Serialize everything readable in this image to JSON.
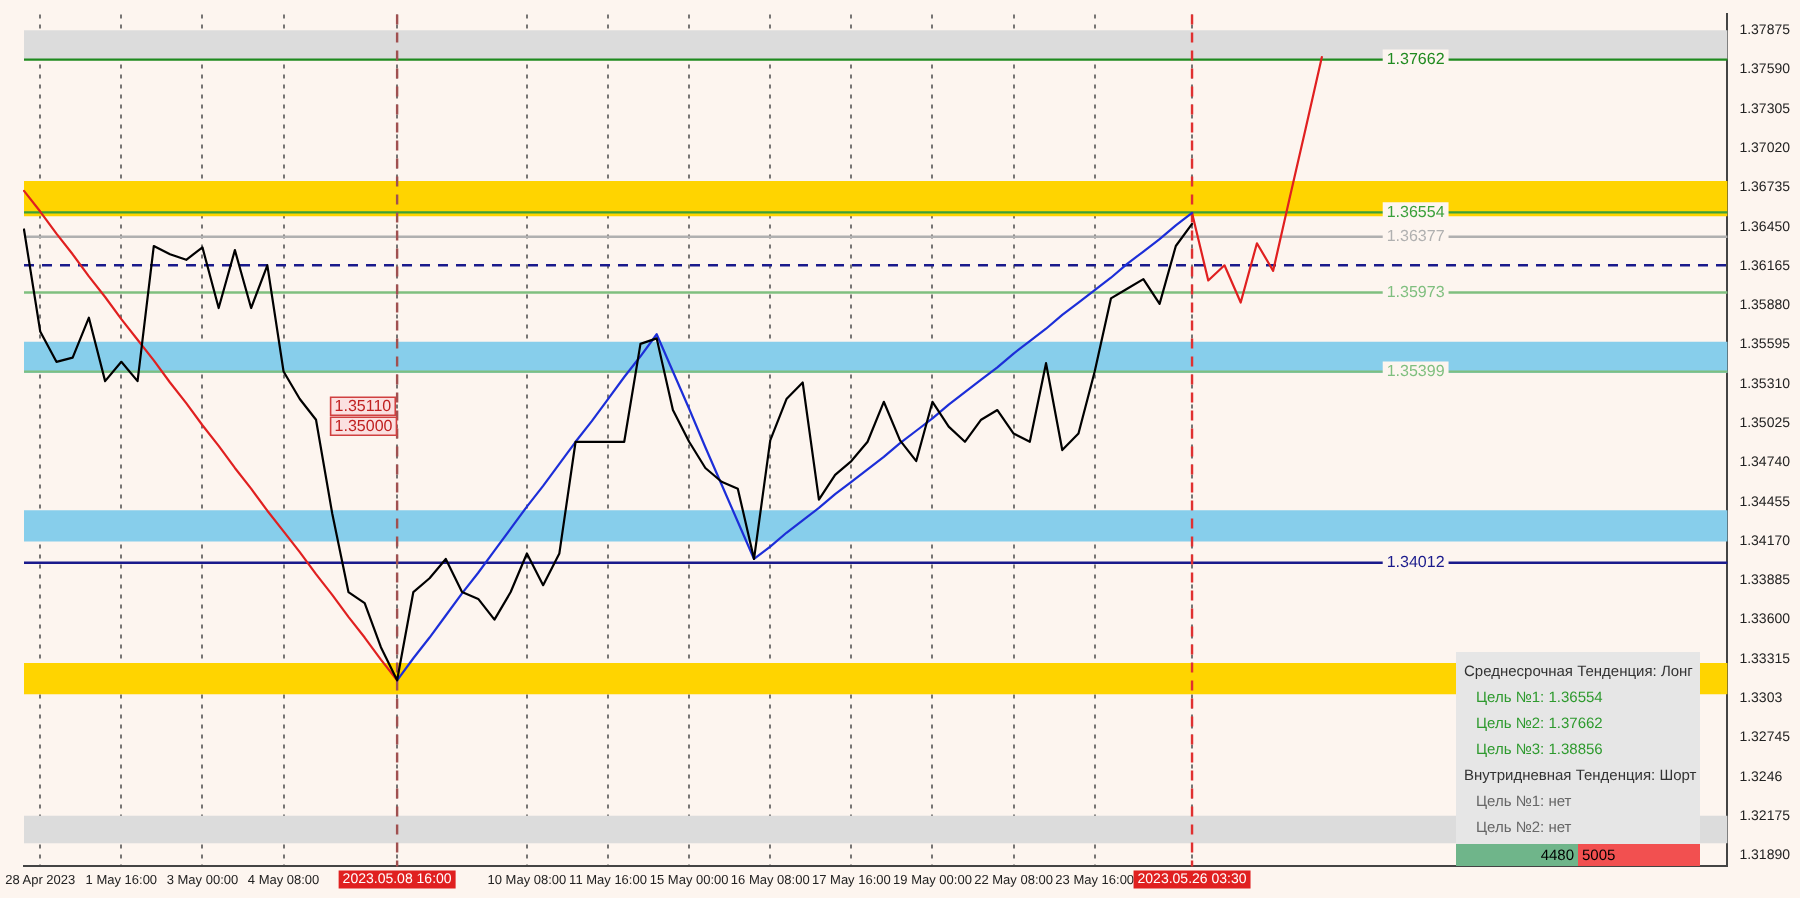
{
  "chart_data": {
    "type": "line",
    "ylim": [
      1.3181,
      1.3799
    ],
    "categories": [
      null,
      "28 Apr 2023",
      null,
      null,
      null,
      null,
      "1 May 16:00",
      null,
      null,
      null,
      null,
      "3 May 00:00",
      null,
      null,
      null,
      null,
      "4 May 08:00",
      null,
      null,
      null,
      null,
      null,
      null,
      "2023.05.08 16:00",
      null,
      null,
      null,
      null,
      null,
      null,
      null,
      "10 May 08:00",
      null,
      null,
      null,
      null,
      "11 May 16:00",
      null,
      null,
      null,
      null,
      "15 May 00:00",
      null,
      null,
      null,
      null,
      "16 May 08:00",
      null,
      null,
      null,
      null,
      "17 May 16:00",
      null,
      null,
      null,
      null,
      "19 May 00:00",
      null,
      null,
      null,
      null,
      "22 May 08:00",
      null,
      null,
      null,
      null,
      "23 May 16:00",
      null,
      null,
      null,
      null,
      null,
      "2023.05.26 03:30",
      null,
      null,
      null,
      null,
      null,
      null,
      null,
      null,
      null,
      null,
      null,
      null,
      null,
      null,
      null,
      null,
      null,
      null,
      null,
      null,
      null,
      null,
      null,
      null,
      null,
      null,
      null,
      null,
      null,
      null,
      null,
      null,
      null
    ],
    "yticks": [
      {
        "value": 1.3189,
        "label": "1.31890"
      },
      1.32175,
      1.3246,
      1.32745,
      1.3303,
      1.33315,
      {
        "value": 1.336,
        "label": "1.33600"
      },
      1.33885,
      {
        "value": 1.3417,
        "label": "1.34170"
      },
      1.34455,
      {
        "value": 1.3474,
        "label": "1.34740"
      },
      1.35025,
      {
        "value": 1.3531,
        "label": "1.35310"
      },
      1.35595,
      {
        "value": 1.3588,
        "label": "1.35880"
      },
      1.36165,
      {
        "value": 1.3645,
        "label": "1.36450"
      },
      1.36735,
      {
        "value": 1.3702,
        "label": "1.37020"
      },
      1.37305,
      {
        "value": 1.3759,
        "label": "1.37590"
      },
      1.37875
    ],
    "grid": "x",
    "legend": false,
    "marker": "none",
    "series": [
      {
        "color": "#000000",
        "values": [
          1.3643,
          1.3569,
          1.3547,
          1.355,
          1.3579,
          1.3533,
          1.3547,
          1.3533,
          1.3631,
          1.3625,
          1.3621,
          1.363,
          1.3586,
          1.3628,
          1.3586,
          1.3617,
          1.354,
          1.352,
          1.3505,
          1.3437,
          1.338,
          1.3372,
          1.334,
          1.3316,
          1.338,
          1.339,
          1.3404,
          1.338,
          1.3375,
          1.336,
          1.338,
          1.3408,
          1.3385,
          1.3408,
          1.3489,
          1.3489,
          1.3489,
          1.3489,
          1.356,
          1.3564,
          1.3512,
          1.3489,
          1.347,
          1.346,
          1.3455,
          1.3404,
          1.349,
          1.352,
          1.3532,
          1.3447,
          1.3465,
          1.3475,
          1.3489,
          1.3518,
          1.349,
          1.3475,
          1.3518,
          1.35,
          1.3489,
          1.3505,
          1.3512,
          1.3495,
          1.3489,
          1.3546,
          1.3483,
          1.3495,
          1.354,
          1.3593,
          1.36,
          1.3607,
          1.3589,
          1.3631,
          1.3647,
          null,
          null,
          null,
          null,
          null,
          null,
          null,
          null,
          null,
          null,
          null,
          null,
          null,
          null,
          null,
          null,
          null,
          null,
          null,
          null,
          null,
          null,
          null,
          null,
          null,
          null,
          null,
          null,
          null,
          null,
          null,
          null,
          null
        ]
      },
      {
        "color": "#1c2ed8",
        "values": [
          null,
          null,
          null,
          null,
          null,
          null,
          null,
          null,
          null,
          null,
          null,
          null,
          null,
          null,
          null,
          null,
          null,
          null,
          null,
          null,
          null,
          null,
          null,
          1.3316,
          1.3332,
          1.3347,
          1.3363,
          1.3379,
          1.3394,
          1.341,
          1.3426,
          1.3442,
          1.3457,
          1.3473,
          1.3489,
          1.3504,
          1.352,
          1.3536,
          1.3551,
          1.3567,
          1.354,
          1.3513,
          1.3485,
          1.3458,
          1.3431,
          1.3404,
          1.3413,
          1.3423,
          1.3432,
          1.3441,
          1.3451,
          1.346,
          1.3469,
          1.3478,
          1.3488,
          1.3497,
          1.3506,
          1.3516,
          1.3525,
          1.3534,
          1.3543,
          1.3553,
          1.3562,
          1.3571,
          1.3581,
          1.359,
          1.3599,
          1.3608,
          1.3618,
          1.3627,
          1.3636,
          1.3646,
          1.3655,
          null,
          null,
          null,
          null,
          null,
          null,
          null,
          null,
          null,
          null,
          null,
          null,
          null,
          null,
          null,
          null,
          null,
          null,
          null,
          null,
          null,
          null,
          null,
          null,
          null,
          null,
          null,
          null,
          null,
          null,
          null,
          null,
          null
        ]
      },
      {
        "color": "#e02020",
        "values": [
          1.3671,
          1.3656,
          1.364,
          1.3625,
          1.3609,
          1.3594,
          1.3578,
          1.3563,
          1.3548,
          1.3532,
          1.3517,
          1.3501,
          1.3486,
          1.347,
          1.3455,
          1.3439,
          1.3424,
          1.3409,
          1.3393,
          1.3378,
          1.3362,
          1.3347,
          1.3331,
          1.3316,
          null,
          null,
          null,
          null,
          null,
          null,
          null,
          null,
          null,
          null,
          null,
          null,
          null,
          null,
          null,
          null,
          null,
          null,
          null,
          null,
          null,
          null,
          null,
          null,
          null,
          null,
          null,
          null,
          null,
          null,
          null,
          null,
          null,
          null,
          null,
          null,
          null,
          null,
          null,
          null,
          null,
          null,
          null,
          null,
          null,
          null,
          null,
          null,
          null,
          null,
          null,
          null,
          null,
          null,
          null,
          null,
          null,
          null,
          null,
          null,
          null,
          null,
          null,
          null,
          null,
          null,
          null,
          null,
          null,
          null,
          null,
          null,
          null,
          null,
          null,
          null,
          null,
          null,
          null,
          null,
          null,
          null
        ]
      },
      {
        "color": "#e02020",
        "values": [
          null,
          null,
          null,
          null,
          null,
          null,
          null,
          null,
          null,
          null,
          null,
          null,
          null,
          null,
          null,
          null,
          null,
          null,
          null,
          null,
          null,
          null,
          null,
          null,
          null,
          null,
          null,
          null,
          null,
          null,
          null,
          null,
          null,
          null,
          null,
          null,
          null,
          null,
          null,
          null,
          null,
          null,
          null,
          null,
          null,
          null,
          null,
          null,
          null,
          null,
          null,
          null,
          null,
          null,
          null,
          null,
          null,
          null,
          null,
          null,
          null,
          null,
          null,
          null,
          null,
          null,
          null,
          null,
          null,
          null,
          null,
          null,
          1.3655,
          1.3606,
          1.3617,
          1.359,
          1.3633,
          1.3613,
          1.3665,
          1.3716,
          1.3768,
          null,
          null,
          null,
          null,
          null,
          null,
          null,
          null,
          null,
          null,
          null,
          null,
          null,
          null,
          null,
          null,
          null,
          null,
          null,
          null,
          null,
          null,
          null,
          null,
          null
        ]
      }
    ],
    "bands": [
      {
        "axis": "y",
        "from": 1.37662,
        "to": 1.37875,
        "color": "#dcdcdc"
      },
      {
        "axis": "y",
        "from": 1.36525,
        "to": 1.36781,
        "color": "#ffd400"
      },
      {
        "axis": "y",
        "from": 1.35388,
        "to": 1.35616,
        "color": "#87ceeb"
      },
      {
        "axis": "y",
        "from": 1.34166,
        "to": 1.34394,
        "color": "#87ceeb"
      },
      {
        "axis": "y",
        "from": 1.33058,
        "to": 1.33285,
        "color": "#ffd400"
      },
      {
        "axis": "y",
        "from": 1.31978,
        "to": 1.32177,
        "color": "#dcdcdc"
      }
    ],
    "ref_lines": [
      {
        "axis": "y",
        "value": 1.37662,
        "label": "1.37662",
        "color": "#1f8a1f"
      },
      {
        "axis": "y",
        "value": 1.36554,
        "label": "1.36554",
        "color": "#3aa03a"
      },
      {
        "axis": "y",
        "value": 1.36377,
        "label": "1.36377",
        "color": "#b0b0b0"
      },
      {
        "axis": "y",
        "value": 1.3617,
        "color": "#1a1a8c",
        "line_style": "dashed"
      },
      {
        "axis": "y",
        "value": 1.35973,
        "label": "1.35973",
        "color": "#7fbf7f"
      },
      {
        "axis": "y",
        "value": 1.35399,
        "label": "1.35399",
        "color": "#7fbf7f"
      },
      {
        "axis": "y",
        "value": 1.34012,
        "label": "1.34012",
        "color": "#1a1a8c"
      },
      {
        "axis": "x",
        "value": "2023.05.08 16:00",
        "color": "#a05050",
        "line_style": "dashed"
      },
      {
        "axis": "x",
        "value": "2023.05.26 03:30",
        "color": "#e03030",
        "line_style": "dashed"
      }
    ],
    "annotations": [
      "1.35110",
      "1.35000",
      "Среднесрочная Тенденция: Лонг",
      "Цель №1: 1.36554",
      "Цель №2: 1.37662",
      "Цель №3: 1.38856",
      "Внутридневная Тенденция: Шорт",
      "Цель №1: нет",
      "Цель №2: нет",
      "4480",
      "5005"
    ]
  }
}
